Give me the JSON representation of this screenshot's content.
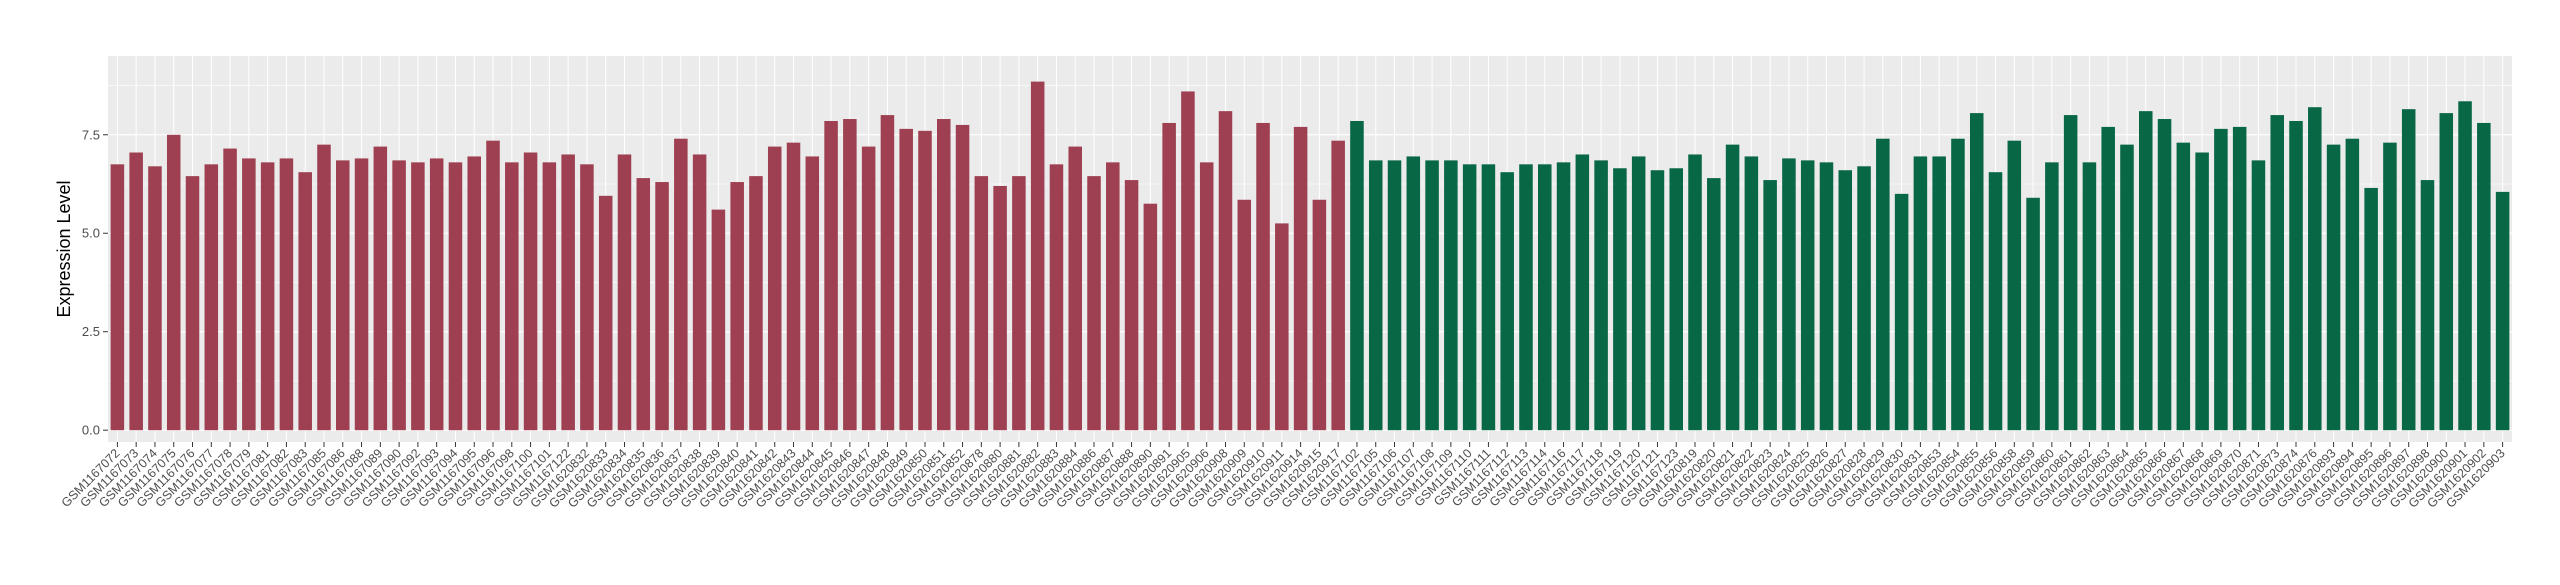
{
  "chart_data": {
    "type": "bar",
    "title": "",
    "xlabel": "",
    "ylabel": "Expression Level",
    "ylim": [
      -0.3,
      9.5
    ],
    "yticks": [
      0.0,
      2.5,
      5.0,
      7.5
    ],
    "ytick_labels": [
      "0.0",
      "2.5",
      "5.0",
      "7.5"
    ],
    "grid": true,
    "legend": "none",
    "colors": {
      "group_a": "#9E4052",
      "group_b": "#086744",
      "panel_bg": "#EBEBEB",
      "grid": "#FFFFFF",
      "axis_text": "#4D4D4D"
    },
    "categories": [
      "GSM1167072",
      "GSM1167073",
      "GSM1167074",
      "GSM1167075",
      "GSM1167076",
      "GSM1167077",
      "GSM1167078",
      "GSM1167079",
      "GSM1167081",
      "GSM1167082",
      "GSM1167083",
      "GSM1167085",
      "GSM1167086",
      "GSM1167088",
      "GSM1167089",
      "GSM1167090",
      "GSM1167092",
      "GSM1167093",
      "GSM1167094",
      "GSM1167095",
      "GSM1167096",
      "GSM1167098",
      "GSM1167100",
      "GSM1167101",
      "GSM1167122",
      "GSM1620832",
      "GSM1620833",
      "GSM1620834",
      "GSM1620835",
      "GSM1620836",
      "GSM1620837",
      "GSM1620838",
      "GSM1620839",
      "GSM1620840",
      "GSM1620841",
      "GSM1620842",
      "GSM1620843",
      "GSM1620844",
      "GSM1620845",
      "GSM1620846",
      "GSM1620847",
      "GSM1620848",
      "GSM1620849",
      "GSM1620850",
      "GSM1620851",
      "GSM1620852",
      "GSM1620878",
      "GSM1620880",
      "GSM1620881",
      "GSM1620882",
      "GSM1620883",
      "GSM1620884",
      "GSM1620886",
      "GSM1620887",
      "GSM1620888",
      "GSM1620890",
      "GSM1620891",
      "GSM1620905",
      "GSM1620906",
      "GSM1620908",
      "GSM1620909",
      "GSM1620910",
      "GSM1620911",
      "GSM1620914",
      "GSM1620915",
      "GSM1620917",
      "GSM1167102",
      "GSM1167105",
      "GSM1167106",
      "GSM1167107",
      "GSM1167108",
      "GSM1167109",
      "GSM1167110",
      "GSM1167111",
      "GSM1167112",
      "GSM1167113",
      "GSM1167114",
      "GSM1167116",
      "GSM1167117",
      "GSM1167118",
      "GSM1167119",
      "GSM1167120",
      "GSM1167121",
      "GSM1167123",
      "GSM1620819",
      "GSM1620820",
      "GSM1620821",
      "GSM1620822",
      "GSM1620823",
      "GSM1620824",
      "GSM1620825",
      "GSM1620826",
      "GSM1620827",
      "GSM1620828",
      "GSM1620829",
      "GSM1620830",
      "GSM1620831",
      "GSM1620853",
      "GSM1620854",
      "GSM1620855",
      "GSM1620856",
      "GSM1620858",
      "GSM1620859",
      "GSM1620860",
      "GSM1620861",
      "GSM1620862",
      "GSM1620863",
      "GSM1620864",
      "GSM1620865",
      "GSM1620866",
      "GSM1620867",
      "GSM1620868",
      "GSM1620869",
      "GSM1620870",
      "GSM1620871",
      "GSM1620873",
      "GSM1620874",
      "GSM1620876",
      "GSM1620893",
      "GSM1620894",
      "GSM1620895",
      "GSM1620896",
      "GSM1620897",
      "GSM1620898",
      "GSM1620900",
      "GSM1620901",
      "GSM1620902",
      "GSM1620903"
    ],
    "values": [
      6.75,
      7.05,
      6.7,
      7.5,
      6.45,
      6.75,
      7.15,
      6.9,
      6.8,
      6.9,
      6.55,
      7.25,
      6.85,
      6.9,
      7.2,
      6.85,
      6.8,
      6.9,
      6.8,
      6.95,
      7.35,
      6.8,
      7.05,
      6.8,
      7.0,
      6.75,
      5.95,
      7.0,
      6.4,
      6.3,
      7.4,
      7.0,
      5.6,
      6.3,
      6.45,
      7.2,
      7.3,
      6.95,
      7.85,
      7.9,
      7.2,
      8.0,
      7.65,
      7.6,
      7.9,
      7.75,
      6.45,
      6.2,
      6.45,
      8.85,
      6.75,
      7.2,
      6.45,
      6.8,
      6.35,
      5.75,
      7.8,
      8.6,
      6.8,
      8.1,
      5.85,
      7.8,
      5.25,
      7.7,
      5.85,
      7.35,
      7.85,
      6.85,
      6.85,
      6.95,
      6.85,
      6.85,
      6.75,
      6.75,
      6.55,
      6.75,
      6.75,
      6.8,
      7.0,
      6.85,
      6.65,
      6.95,
      6.6,
      6.65,
      7.0,
      6.4,
      7.25,
      6.95,
      6.35,
      6.9,
      6.85,
      6.8,
      6.6,
      6.7,
      7.4,
      6.0,
      6.95,
      6.95,
      7.4,
      8.05,
      6.55,
      7.35,
      5.9,
      6.8,
      8.0,
      6.8,
      7.7,
      7.25,
      8.1,
      7.9,
      7.3,
      7.05,
      7.65,
      7.7,
      6.85,
      8.0,
      7.85,
      8.2,
      7.25,
      7.4,
      6.15,
      7.3,
      8.15,
      6.35,
      8.05,
      8.35,
      7.8,
      6.05
    ],
    "series": [
      {
        "color": "#9E4052",
        "start": 0,
        "count": 66
      },
      {
        "color": "#086744",
        "start": 66,
        "count": 62
      }
    ]
  }
}
